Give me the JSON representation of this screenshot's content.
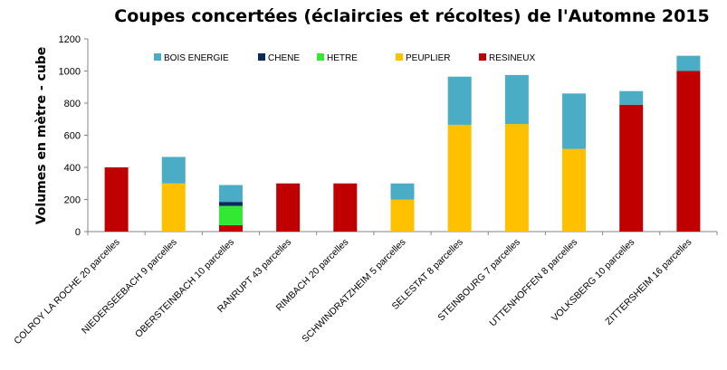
{
  "chart_data": {
    "type": "bar",
    "stacked": true,
    "title": "Coupes concertées (éclaircies et récoltes) de l'Automne 2015",
    "xlabel": "",
    "ylabel": "Volumes en mètre - cube",
    "ylim": [
      0,
      1200
    ],
    "yticks": [
      0,
      200,
      400,
      600,
      800,
      1000,
      1200
    ],
    "grid": false,
    "legend_position": "top",
    "categories": [
      "COLROY LA ROCHE 20 parcelles",
      "NIEDERSEEBACH 9 parcelles",
      "OBERSTEINBACH 10 parcelles",
      "RANRUPT 43 parcelles",
      "RIMBACH 20 parcelles",
      "SCHWINDRATZHEIM 5 parcelles",
      "SELESTAT 8 parcelles",
      "STEINBOURG 7 parcelles",
      "UTTENHOFFEN 8 parcelles",
      "VOLKSBERG 10 parcelles",
      "ZITTERSHEIM 16 parcelles"
    ],
    "series": [
      {
        "name": "RESINEUX",
        "color": "#C00000",
        "values": [
          400,
          0,
          40,
          300,
          300,
          0,
          0,
          0,
          0,
          790,
          1000
        ]
      },
      {
        "name": "PEUPLIER",
        "color": "#FFC000",
        "values": [
          0,
          300,
          0,
          0,
          0,
          200,
          665,
          670,
          515,
          0,
          0
        ]
      },
      {
        "name": "HETRE",
        "color": "#33E833",
        "values": [
          0,
          0,
          120,
          0,
          0,
          0,
          0,
          0,
          0,
          0,
          0
        ]
      },
      {
        "name": "CHENE",
        "color": "#0D2A5A",
        "values": [
          0,
          0,
          25,
          0,
          0,
          0,
          0,
          0,
          0,
          0,
          0
        ]
      },
      {
        "name": "BOIS ENERGIE",
        "color": "#4BACC6",
        "values": [
          0,
          165,
          105,
          0,
          0,
          100,
          300,
          305,
          345,
          85,
          95
        ]
      }
    ],
    "legend_order": [
      "BOIS ENERGIE",
      "CHENE",
      "HETRE",
      "PEUPLIER",
      "RESINEUX"
    ]
  }
}
